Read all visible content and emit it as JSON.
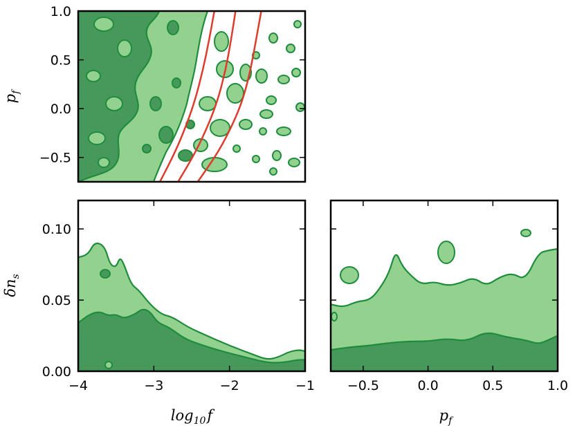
{
  "chart_data": [
    {
      "type": "contour",
      "panel": "top-left",
      "xlabel": "",
      "ylabel": "p_f",
      "ylabel_main": "p",
      "ylabel_sub": "f",
      "xlim": [
        -4,
        -1
      ],
      "ylim": [
        -0.75,
        1.0
      ],
      "x_ticks": [],
      "y_ticks": [
        1.0,
        0.5,
        0.0,
        -0.5
      ],
      "y_tick_labels": [
        "1.0",
        "0.5",
        "0.0",
        "−0.5"
      ],
      "levels": [
        "inner",
        "outer"
      ],
      "fill_colors": {
        "inner": "#46995a",
        "outer": "#93d18e"
      },
      "line_color": "#1e8c3c",
      "curve_color": "#dd3b2c",
      "curves": [
        {
          "points": [
            [
              -2.92,
              -0.75
            ],
            [
              -2.72,
              -0.45
            ],
            [
              -2.56,
              -0.15
            ],
            [
              -2.45,
              0.1
            ],
            [
              -2.35,
              0.4
            ],
            [
              -2.27,
              0.7
            ],
            [
              -2.2,
              1.0
            ]
          ]
        },
        {
          "points": [
            [
              -2.68,
              -0.75
            ],
            [
              -2.45,
              -0.45
            ],
            [
              -2.27,
              -0.15
            ],
            [
              -2.15,
              0.1
            ],
            [
              -2.05,
              0.4
            ],
            [
              -1.98,
              0.7
            ],
            [
              -1.92,
              1.0
            ]
          ]
        },
        {
          "points": [
            [
              -2.42,
              -0.75
            ],
            [
              -2.15,
              -0.45
            ],
            [
              -1.95,
              -0.15
            ],
            [
              -1.82,
              0.1
            ],
            [
              -1.72,
              0.4
            ],
            [
              -1.65,
              0.7
            ],
            [
              -1.58,
              1.0
            ]
          ]
        }
      ]
    },
    {
      "type": "contour",
      "panel": "bottom-left",
      "xlabel": "log_10 f",
      "xlabel_main": "log",
      "xlabel_sub": "10",
      "xlabel_tail": "f",
      "ylabel": "δ n_s",
      "ylabel_main": "δn",
      "ylabel_sub": "s",
      "xlim": [
        -4,
        -1
      ],
      "ylim": [
        0.0,
        0.12
      ],
      "x_ticks": [
        -4,
        -3,
        -2,
        -1
      ],
      "x_tick_labels": [
        "−4",
        "−3",
        "−2",
        "−1"
      ],
      "y_ticks": [
        0.0,
        0.05,
        0.1
      ],
      "y_tick_labels": [
        "0.00",
        "0.05",
        "0.10"
      ],
      "outer_boundary": [
        [
          -4.0,
          0.08
        ],
        [
          -3.87,
          0.082
        ],
        [
          -3.78,
          0.091
        ],
        [
          -3.65,
          0.088
        ],
        [
          -3.58,
          0.075
        ],
        [
          -3.5,
          0.073
        ],
        [
          -3.45,
          0.08
        ],
        [
          -3.4,
          0.076
        ],
        [
          -3.3,
          0.061
        ],
        [
          -3.2,
          0.057
        ],
        [
          -3.05,
          0.047
        ],
        [
          -2.9,
          0.04
        ],
        [
          -2.75,
          0.038
        ],
        [
          -2.55,
          0.031
        ],
        [
          -2.3,
          0.025
        ],
        [
          -2.0,
          0.018
        ],
        [
          -1.7,
          0.012
        ],
        [
          -1.5,
          0.008
        ],
        [
          -1.35,
          0.01
        ],
        [
          -1.2,
          0.014
        ],
        [
          -1.07,
          0.015
        ],
        [
          -1.0,
          0.014
        ]
      ],
      "inner_boundary": [
        [
          -4.0,
          0.034
        ],
        [
          -3.85,
          0.04
        ],
        [
          -3.72,
          0.042
        ],
        [
          -3.6,
          0.039
        ],
        [
          -3.5,
          0.04
        ],
        [
          -3.4,
          0.037
        ],
        [
          -3.25,
          0.04
        ],
        [
          -3.15,
          0.044
        ],
        [
          -3.05,
          0.042
        ],
        [
          -2.95,
          0.034
        ],
        [
          -2.8,
          0.031
        ],
        [
          -2.6,
          0.023
        ],
        [
          -2.4,
          0.019
        ],
        [
          -2.1,
          0.014
        ],
        [
          -1.8,
          0.01
        ],
        [
          -1.5,
          0.006
        ],
        [
          -1.3,
          0.006
        ],
        [
          -1.1,
          0.008
        ],
        [
          -1.0,
          0.008
        ]
      ]
    },
    {
      "type": "contour",
      "panel": "bottom-right",
      "xlabel": "p_f",
      "xlabel_main": "p",
      "xlabel_sub": "f",
      "ylabel": "",
      "xlim": [
        -0.75,
        1.0
      ],
      "ylim": [
        0.0,
        0.12
      ],
      "x_ticks": [
        -0.5,
        0.0,
        0.5,
        1.0
      ],
      "x_tick_labels": [
        "−0.5",
        "0.0",
        "0.5",
        "1.0"
      ],
      "y_ticks": [
        0.0,
        0.05,
        0.1
      ],
      "outer_boundary": [
        [
          -0.75,
          0.047
        ],
        [
          -0.65,
          0.045
        ],
        [
          -0.55,
          0.049
        ],
        [
          -0.45,
          0.05
        ],
        [
          -0.38,
          0.057
        ],
        [
          -0.3,
          0.069
        ],
        [
          -0.25,
          0.085
        ],
        [
          -0.2,
          0.074
        ],
        [
          -0.13,
          0.067
        ],
        [
          -0.05,
          0.061
        ],
        [
          0.05,
          0.063
        ],
        [
          0.15,
          0.06
        ],
        [
          0.25,
          0.062
        ],
        [
          0.35,
          0.066
        ],
        [
          0.45,
          0.06
        ],
        [
          0.55,
          0.066
        ],
        [
          0.65,
          0.069
        ],
        [
          0.75,
          0.064
        ],
        [
          0.85,
          0.083
        ],
        [
          0.93,
          0.085
        ],
        [
          1.0,
          0.086
        ]
      ],
      "inner_boundary": [
        [
          -0.75,
          0.015
        ],
        [
          -0.6,
          0.017
        ],
        [
          -0.45,
          0.018
        ],
        [
          -0.3,
          0.02
        ],
        [
          -0.15,
          0.021
        ],
        [
          0.0,
          0.021
        ],
        [
          0.15,
          0.023
        ],
        [
          0.3,
          0.021
        ],
        [
          0.45,
          0.028
        ],
        [
          0.6,
          0.024
        ],
        [
          0.75,
          0.022
        ],
        [
          0.85,
          0.019
        ],
        [
          0.93,
          0.022
        ],
        [
          1.0,
          0.025
        ]
      ]
    }
  ]
}
